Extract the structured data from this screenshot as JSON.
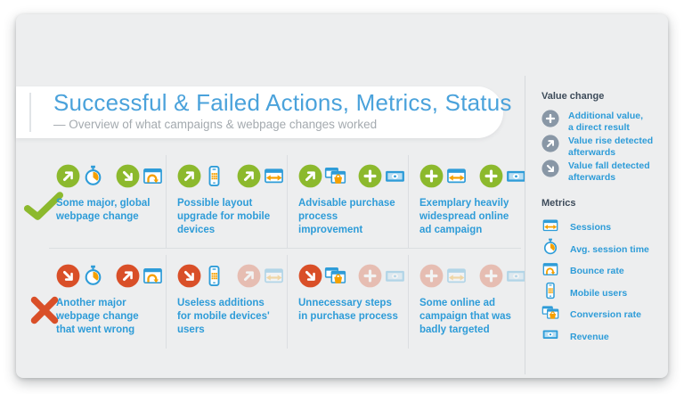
{
  "slide": {
    "title": "Successful & Failed Actions, Metrics, Status",
    "subtitle": "— Overview of what campaigns & webpage changes worked"
  },
  "grid": {
    "rows": [
      {
        "status": "success",
        "mark": "check-icon",
        "items": [
          {
            "label": "Some major, global webpage change",
            "pairs": [
              {
                "badge": "rise",
                "metric": "session-time",
                "faded": false
              },
              {
                "badge": "fall",
                "metric": "bounce-rate",
                "faded": false
              }
            ]
          },
          {
            "label": "Possible layout upgrade for mobile devices",
            "pairs": [
              {
                "badge": "rise",
                "metric": "mobile-users",
                "faded": false
              },
              {
                "badge": "rise",
                "metric": "sessions",
                "faded": false
              }
            ]
          },
          {
            "label": "Advisable purchase process improvement",
            "pairs": [
              {
                "badge": "rise",
                "metric": "conversion-rate",
                "faded": false
              },
              {
                "badge": "plus",
                "metric": "revenue",
                "faded": false
              }
            ]
          },
          {
            "label": "Exemplary heavily widespread online ad campaign",
            "pairs": [
              {
                "badge": "plus",
                "metric": "sessions",
                "faded": false
              },
              {
                "badge": "plus",
                "metric": "revenue",
                "faded": false
              }
            ]
          }
        ]
      },
      {
        "status": "failure",
        "mark": "cross-icon",
        "items": [
          {
            "label": "Another major webpage change that went wrong",
            "pairs": [
              {
                "badge": "fall",
                "metric": "session-time",
                "faded": false
              },
              {
                "badge": "rise",
                "metric": "bounce-rate",
                "faded": false
              }
            ]
          },
          {
            "label": "Useless additions for mobile devices' users",
            "pairs": [
              {
                "badge": "fall",
                "metric": "mobile-users",
                "faded": false
              },
              {
                "badge": "rise",
                "metric": "sessions",
                "faded": true
              }
            ]
          },
          {
            "label": "Unnecessary steps in purchase process",
            "pairs": [
              {
                "badge": "fall",
                "metric": "conversion-rate",
                "faded": false
              },
              {
                "badge": "plus",
                "metric": "revenue",
                "faded": true
              }
            ]
          },
          {
            "label": "Some online ad campaign that was badly targeted",
            "pairs": [
              {
                "badge": "plus",
                "metric": "sessions",
                "faded": true
              },
              {
                "badge": "plus",
                "metric": "revenue",
                "faded": true
              }
            ]
          }
        ]
      }
    ]
  },
  "sidebar": {
    "value_change_heading": "Value change",
    "value_change_items": [
      {
        "badge": "plus",
        "label": "Additional value,\na direct result"
      },
      {
        "badge": "rise",
        "label": "Value rise detected\nafterwards"
      },
      {
        "badge": "fall",
        "label": "Value fall detected\nafterwards"
      }
    ],
    "metrics_heading": "Metrics",
    "metrics": [
      {
        "icon": "sessions",
        "label": "Sessions"
      },
      {
        "icon": "session-time",
        "label": "Avg. session time"
      },
      {
        "icon": "bounce-rate",
        "label": "Bounce rate"
      },
      {
        "icon": "mobile-users",
        "label": "Mobile users"
      },
      {
        "icon": "conversion-rate",
        "label": "Conversion rate"
      },
      {
        "icon": "revenue",
        "label": "Revenue"
      }
    ]
  },
  "colors": {
    "title-blue": "#4AA2DB",
    "label-blue": "#2E9CD8",
    "icon-blue": "#2E9CD8",
    "orange": "#F5A000",
    "green": "#8CB92D",
    "red": "#D94F28",
    "gray-badge": "#8997A6",
    "heading-dark": "#3D4B5A",
    "slide-bg": "#EDEEEF",
    "divider": "#DBDEE1",
    "subtitle-gray": "#A4AAAF"
  }
}
